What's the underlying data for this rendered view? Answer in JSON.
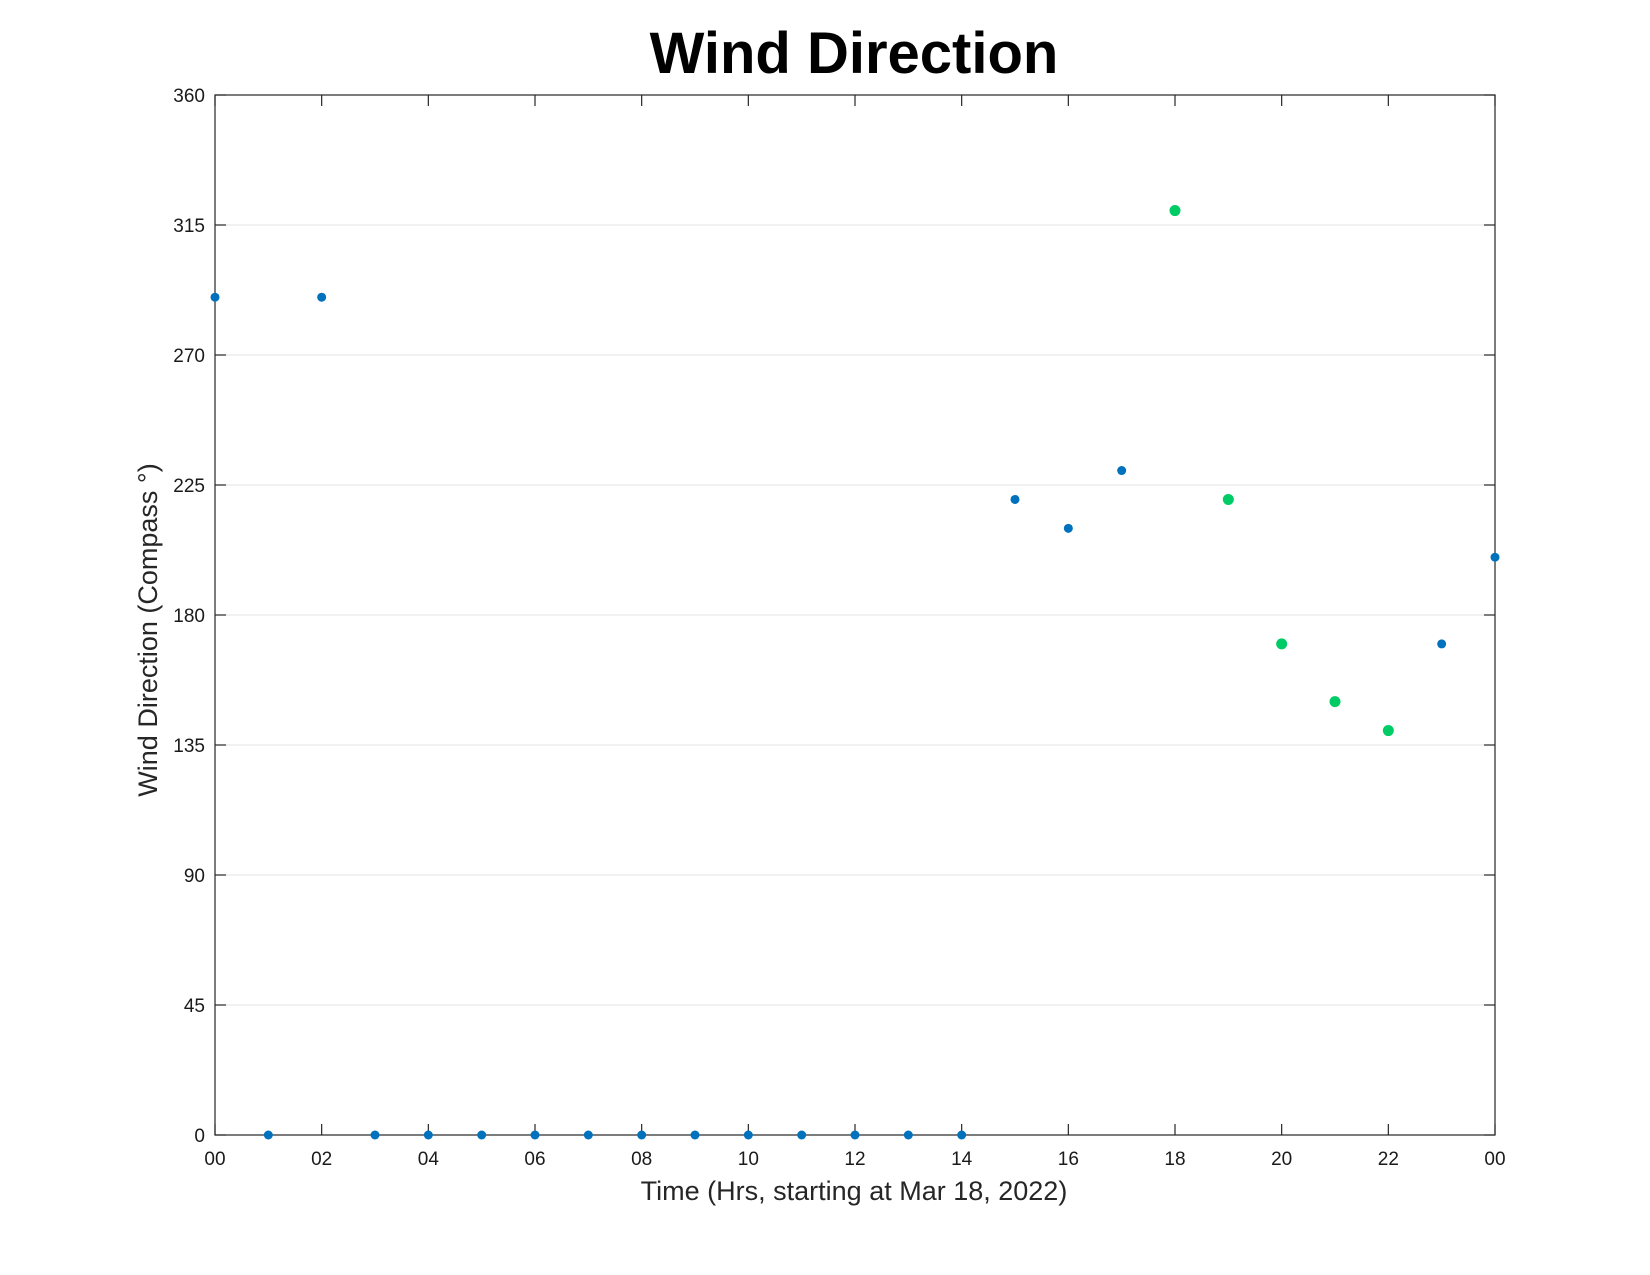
{
  "chart_data": {
    "type": "scatter",
    "title": "Wind Direction",
    "xlabel": "Time (Hrs, starting at Mar 18, 2022)",
    "ylabel": "Wind Direction (Compass °)",
    "xlim": [
      "2022-03-18 00:00",
      "2022-03-19 00:00"
    ],
    "ylim": [
      0,
      360
    ],
    "x_ticks": [
      "00",
      "02",
      "04",
      "06",
      "08",
      "10",
      "12",
      "14",
      "16",
      "18",
      "20",
      "22",
      "00"
    ],
    "y_ticks": [
      "0",
      "45",
      "90",
      "135",
      "180",
      "225",
      "270",
      "315",
      "360"
    ],
    "grid": "horizontal",
    "series": [
      {
        "color": "#0072bd",
        "x": [
          "2022-03-18 00:00",
          "2022-03-18 01:00",
          "2022-03-18 02:00",
          "2022-03-18 03:00",
          "2022-03-18 04:00",
          "2022-03-18 05:00",
          "2022-03-18 06:00",
          "2022-03-18 07:00",
          "2022-03-18 08:00",
          "2022-03-18 09:00",
          "2022-03-18 10:00",
          "2022-03-18 11:00",
          "2022-03-18 12:00",
          "2022-03-18 13:00",
          "2022-03-18 14:00",
          "2022-03-18 15:00",
          "2022-03-18 16:00",
          "2022-03-18 17:00",
          "2022-03-18 23:00",
          "2022-03-19 00:00"
        ],
        "y": [
          290,
          0,
          290,
          0,
          0,
          0,
          0,
          0,
          0,
          0,
          0,
          0,
          0,
          0,
          0,
          220,
          210,
          230,
          170,
          200
        ]
      },
      {
        "color": "#00cc66",
        "x": [
          "2022-03-18 18:00",
          "2022-03-18 19:00",
          "2022-03-18 20:00",
          "2022-03-18 21:00",
          "2022-03-18 22:00"
        ],
        "y": [
          320,
          220,
          170,
          150,
          140
        ]
      }
    ]
  }
}
